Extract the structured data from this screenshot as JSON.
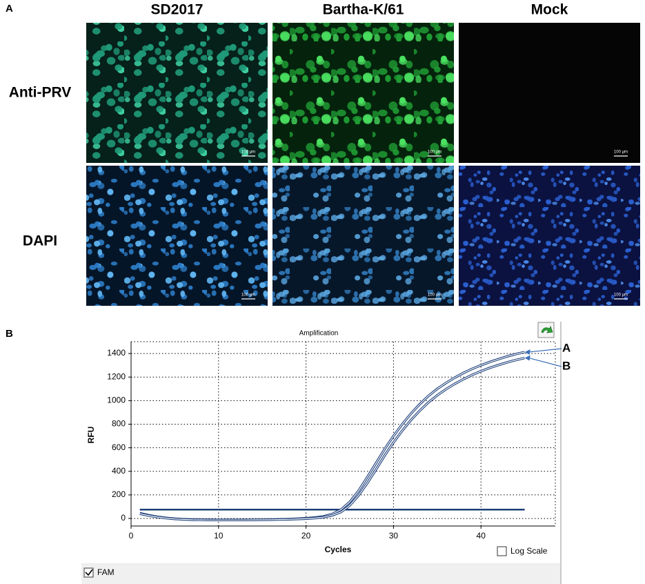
{
  "panel_a": {
    "label": "A",
    "columns": [
      "SD2017",
      "Bartha-K/61",
      "Mock"
    ],
    "rows": [
      "Anti-PRV",
      "DAPI"
    ],
    "scale_bars": [
      [
        "100 μm",
        "100 μm",
        "100 μm"
      ],
      [
        "100 μm",
        "100 μm",
        "100 μm"
      ]
    ]
  },
  "chart_data": {
    "type": "line",
    "panel_label": "B",
    "title": "Amplification",
    "x_label": "Cycles",
    "y_label": "RFU",
    "x": [
      1,
      2,
      3,
      4,
      5,
      6,
      7,
      8,
      9,
      10,
      11,
      12,
      13,
      14,
      15,
      16,
      17,
      18,
      19,
      20,
      21,
      22,
      23,
      24,
      25,
      26,
      27,
      28,
      29,
      30,
      31,
      32,
      33,
      34,
      35,
      36,
      37,
      38,
      39,
      40,
      41,
      42,
      43,
      44,
      45
    ],
    "series": [
      {
        "name": "A",
        "color": "#1d3f7a",
        "values": [
          45,
          28,
          15,
          5,
          -2,
          -6,
          -9,
          -10,
          -11,
          -12,
          -12,
          -12,
          -12,
          -11,
          -10,
          -9,
          -7,
          -5,
          -2,
          2,
          8,
          18,
          38,
          75,
          140,
          235,
          350,
          470,
          590,
          700,
          800,
          890,
          970,
          1040,
          1100,
          1150,
          1195,
          1235,
          1270,
          1300,
          1328,
          1352,
          1375,
          1395,
          1412
        ]
      },
      {
        "name": "B",
        "color": "#1d3f7a",
        "values": [
          40,
          24,
          12,
          3,
          -4,
          -8,
          -11,
          -12,
          -13,
          -13,
          -13,
          -13,
          -13,
          -12,
          -11,
          -10,
          -9,
          -7,
          -5,
          -2,
          3,
          11,
          26,
          55,
          110,
          195,
          300,
          415,
          535,
          645,
          745,
          835,
          915,
          985,
          1045,
          1097,
          1142,
          1182,
          1218,
          1250,
          1278,
          1302,
          1325,
          1345,
          1362
        ]
      }
    ],
    "threshold": {
      "value": 75,
      "x": [
        1,
        45
      ],
      "color": "#1d3f7a"
    },
    "xlim": [
      0,
      48.5
    ],
    "ylim": [
      -64,
      1500
    ],
    "xticks": [
      0,
      10,
      20,
      30,
      40
    ],
    "yticks": [
      0,
      200,
      400,
      600,
      800,
      1000,
      1200,
      1400
    ],
    "grid": true,
    "log_scale": false,
    "log_scale_label": "Log Scale",
    "channel": "FAM",
    "channel_checked": true
  }
}
